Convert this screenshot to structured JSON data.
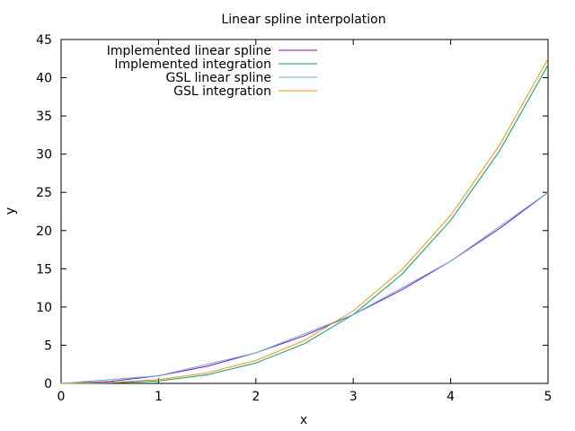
{
  "chart_data": {
    "type": "line",
    "title": "Linear spline interpolation",
    "xlabel": "x",
    "ylabel": "y",
    "xlim": [
      0,
      5
    ],
    "ylim": [
      0,
      45
    ],
    "xticks": [
      "0",
      "1",
      "2",
      "3",
      "4",
      "5"
    ],
    "yticks": [
      "0",
      "5",
      "10",
      "15",
      "20",
      "25",
      "30",
      "35",
      "40",
      "45"
    ],
    "grid": false,
    "legend_position": "top-left",
    "series": [
      {
        "name": "Implemented linear spline",
        "color": "#9400d3",
        "x": [
          0,
          0.5,
          1,
          1.5,
          2,
          2.5,
          3,
          3.5,
          4,
          4.5,
          5
        ],
        "y": [
          0,
          0.25,
          1,
          2.25,
          4,
          6.25,
          9,
          12.25,
          16,
          20.25,
          25
        ]
      },
      {
        "name": "Implemented integration",
        "color": "#009e73",
        "x": [
          0,
          0.5,
          1,
          1.5,
          2,
          2.5,
          3,
          3.5,
          4,
          4.5,
          5
        ],
        "y": [
          0,
          0.04,
          0.33,
          1.13,
          2.67,
          5.21,
          9.0,
          14.29,
          21.33,
          30.38,
          41.67
        ]
      },
      {
        "name": "GSL linear spline",
        "color": "#56b4e9",
        "x": [
          0,
          0.5,
          1,
          1.5,
          2,
          2.5,
          3,
          3.5,
          4,
          4.5,
          5
        ],
        "y": [
          0,
          0.5,
          1,
          2.5,
          4,
          6.5,
          9,
          12.5,
          16,
          20.5,
          25
        ]
      },
      {
        "name": "GSL integration",
        "color": "#e69f00",
        "x": [
          0,
          0.5,
          1,
          1.5,
          2,
          2.5,
          3,
          3.5,
          4,
          4.5,
          5
        ],
        "y": [
          0,
          0.13,
          0.5,
          1.38,
          3.0,
          5.63,
          9.5,
          14.88,
          22.0,
          31.13,
          42.5
        ]
      }
    ]
  }
}
